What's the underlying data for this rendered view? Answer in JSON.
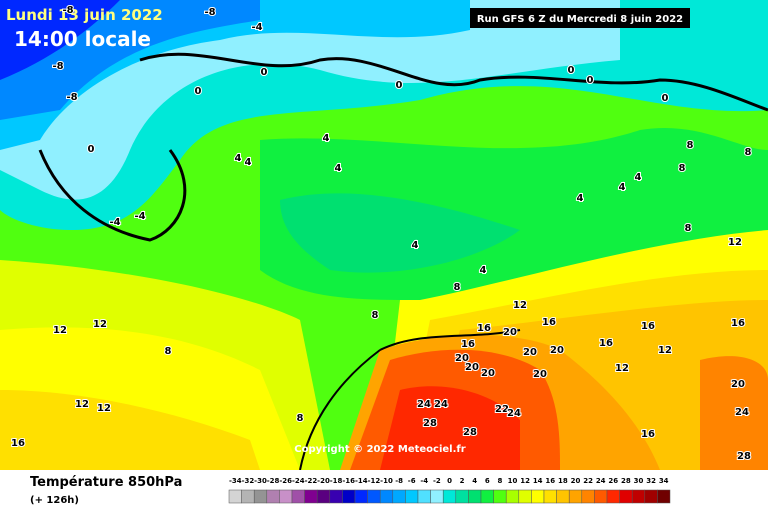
{
  "header": {
    "date": "Lundi 13 juin 2022",
    "time": "14:00 locale",
    "run": "Run GFS 6 Z du Mercredi 8 juin 2022"
  },
  "copyright": "Copyright © 2022 Meteociel.fr",
  "footer": {
    "title": "Température 850hPa",
    "lead": "(+ 126h)"
  },
  "legend": {
    "ticks": [
      -34,
      -32,
      -30,
      -28,
      -26,
      -24,
      -22,
      -20,
      -18,
      -16,
      -14,
      -12,
      -10,
      -8,
      -6,
      -4,
      -2,
      0,
      2,
      4,
      6,
      8,
      10,
      12,
      14,
      16,
      18,
      20,
      22,
      24,
      26,
      28,
      30,
      32,
      34
    ],
    "colors": [
      "#d4d4d4",
      "#b4b4b4",
      "#949494",
      "#b080b0",
      "#c890c8",
      "#a050a8",
      "#800090",
      "#5a0080",
      "#3800b0",
      "#0000c8",
      "#0028ff",
      "#0058ff",
      "#0088ff",
      "#00a8ff",
      "#00c8ff",
      "#50e0ff",
      "#90f0ff",
      "#00e8d8",
      "#00e0a0",
      "#00e070",
      "#10f040",
      "#50ff10",
      "#a8ff00",
      "#e0ff00",
      "#ffff00",
      "#ffe000",
      "#ffc400",
      "#ffa400",
      "#ff8400",
      "#ff5a00",
      "#ff2800",
      "#e00000",
      "#c00000",
      "#a00000",
      "#700000"
    ]
  },
  "map_labels": [
    -8,
    -8,
    -4,
    -8,
    -8,
    0,
    0,
    0,
    0,
    0,
    0,
    0,
    -4,
    -4,
    4,
    4,
    4,
    4,
    4,
    4,
    4,
    4,
    4,
    8,
    8,
    8,
    8,
    12,
    8,
    12,
    8,
    12,
    12,
    8,
    16,
    20,
    16,
    16,
    20,
    20,
    16,
    16,
    12,
    12,
    20,
    20,
    20,
    20,
    16,
    12,
    12,
    16,
    8,
    24,
    24,
    28,
    22,
    24,
    28,
    16,
    20,
    24,
    28
  ]
}
